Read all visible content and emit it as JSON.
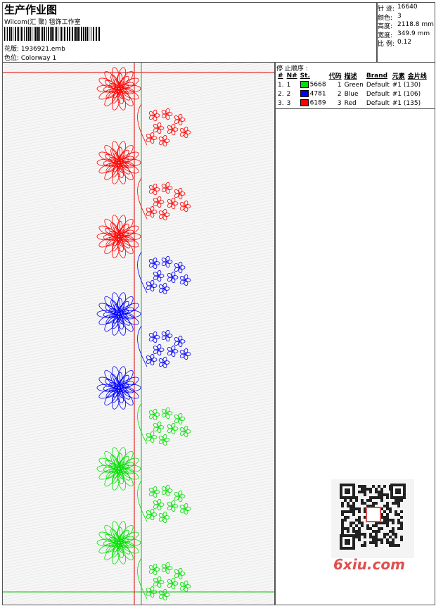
{
  "header": {
    "title": "生产作业图",
    "company": "Wilcom(汇 聚) 毯饰工作室",
    "design": "花版:  1936921.emb",
    "colorway": "色位:  Colorway 1"
  },
  "stats": [
    {
      "label": "针 迹:",
      "value": "16640"
    },
    {
      "label": "颜色:",
      "value": "3"
    },
    {
      "label": "高度:",
      "value": "2118.8 mm"
    },
    {
      "label": "宽度:",
      "value": "349.9 mm"
    },
    {
      "label": "比 例:",
      "value": "0.12"
    }
  ],
  "table": {
    "title": "停 止顺序 :",
    "headers": [
      "#",
      "N#",
      "St.",
      "代码",
      "描述",
      "Brand",
      "元素",
      "金片线"
    ],
    "rows": [
      {
        "color": "#00e000",
        "cells": [
          "1.",
          "1",
          "5668",
          "1",
          "Green",
          "Default",
          "#1 (130)"
        ]
      },
      {
        "color": "#0000ff",
        "cells": [
          "2.",
          "2",
          "4781",
          "2",
          "Blue",
          "Default",
          "#1 (106)"
        ]
      },
      {
        "color": "#ff0000",
        "cells": [
          "3.",
          "3",
          "6189",
          "3",
          "Red",
          "Default",
          "#1 (135)"
        ]
      }
    ]
  },
  "watermark": "6xiu.com"
}
